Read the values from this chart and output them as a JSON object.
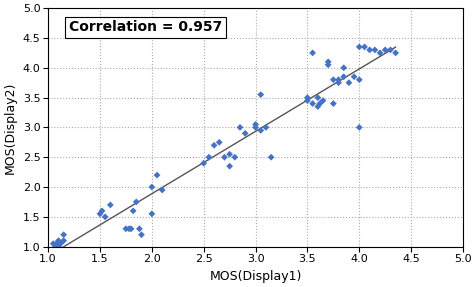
{
  "x": [
    1.05,
    1.07,
    1.08,
    1.1,
    1.1,
    1.12,
    1.15,
    1.15,
    1.5,
    1.52,
    1.55,
    1.6,
    1.75,
    1.78,
    1.8,
    1.82,
    1.85,
    1.88,
    1.9,
    2.0,
    2.0,
    2.05,
    2.1,
    2.5,
    2.55,
    2.6,
    2.65,
    2.7,
    2.75,
    2.75,
    2.8,
    2.85,
    2.9,
    3.0,
    3.0,
    3.05,
    3.05,
    3.1,
    3.15,
    3.5,
    3.5,
    3.55,
    3.55,
    3.6,
    3.6,
    3.62,
    3.65,
    3.7,
    3.7,
    3.75,
    3.75,
    3.8,
    3.8,
    3.85,
    3.85,
    3.9,
    3.95,
    4.0,
    4.0,
    4.0,
    4.05,
    4.1,
    4.15,
    4.2,
    4.25,
    4.3,
    4.35
  ],
  "y": [
    1.05,
    1.0,
    1.05,
    1.0,
    1.1,
    1.05,
    1.1,
    1.2,
    1.55,
    1.6,
    1.5,
    1.7,
    1.3,
    1.3,
    1.3,
    1.6,
    1.75,
    1.3,
    1.2,
    2.0,
    1.55,
    2.2,
    1.95,
    2.4,
    2.5,
    2.7,
    2.75,
    2.5,
    2.35,
    2.55,
    2.5,
    3.0,
    2.9,
    3.0,
    3.05,
    2.95,
    3.55,
    3.0,
    2.5,
    3.5,
    3.45,
    3.4,
    4.25,
    3.5,
    3.35,
    3.4,
    3.45,
    4.1,
    4.05,
    3.4,
    3.8,
    3.75,
    3.8,
    3.85,
    4.0,
    3.75,
    3.85,
    3.0,
    3.8,
    4.35,
    4.35,
    4.3,
    4.3,
    4.25,
    4.3,
    4.3,
    4.25
  ],
  "xlim": [
    1.0,
    5.0
  ],
  "ylim": [
    1.0,
    5.0
  ],
  "xticks": [
    1.0,
    1.5,
    2.0,
    2.5,
    3.0,
    3.5,
    4.0,
    4.5,
    5.0
  ],
  "yticks": [
    1.0,
    1.5,
    2.0,
    2.5,
    3.0,
    3.5,
    4.0,
    4.5,
    5.0
  ],
  "xlabel": "MOS(Display1)",
  "ylabel": "MOS(Display2)",
  "annotation": "Correlation = 0.957",
  "scatter_color": "#4472C4",
  "scatter_marker": "D",
  "scatter_size": 12,
  "line_color": "#555555",
  "line_width": 1.0,
  "grid_color": "#aaaaaa",
  "background_color": "#ffffff",
  "font_size_label": 9,
  "font_size_tick": 8,
  "font_size_annotation": 10,
  "figwidth": 4.76,
  "figheight": 2.87,
  "dpi": 100
}
